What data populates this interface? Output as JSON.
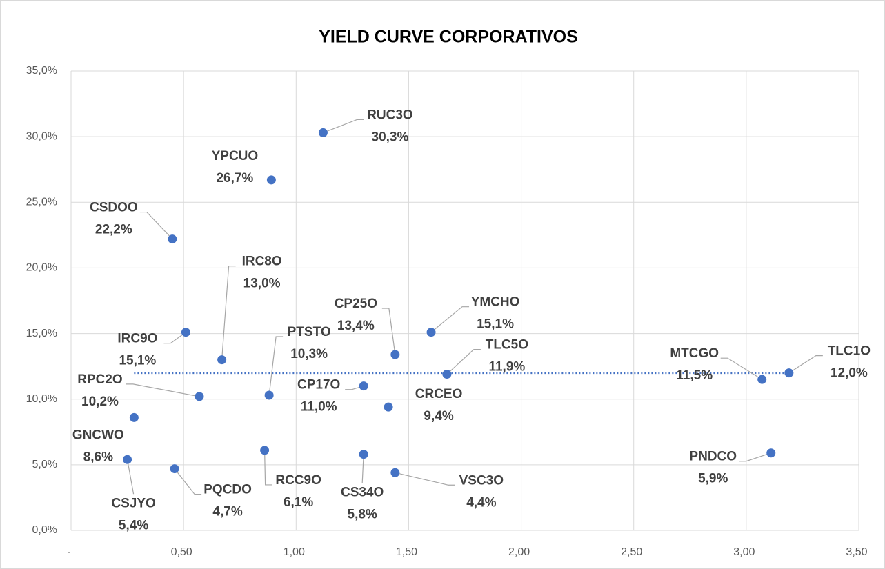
{
  "chart_data": {
    "type": "scatter",
    "title": "YIELD CURVE CORPORATIVOS",
    "xlim": [
      0,
      3.5
    ],
    "xticks": [
      {
        "value": 0,
        "label": "-"
      },
      {
        "value": 0.5,
        "label": "0,50"
      },
      {
        "value": 1,
        "label": "1,00"
      },
      {
        "value": 1.5,
        "label": "1,50"
      },
      {
        "value": 2,
        "label": "2,00"
      },
      {
        "value": 2.5,
        "label": "2,50"
      },
      {
        "value": 3,
        "label": "3,00"
      },
      {
        "value": 3.5,
        "label": "3,50"
      }
    ],
    "ylim": [
      0,
      35
    ],
    "yticks": [
      {
        "value": 0,
        "label": "0,0%"
      },
      {
        "value": 5,
        "label": "5,0%"
      },
      {
        "value": 10,
        "label": "10,0%"
      },
      {
        "value": 15,
        "label": "15,0%"
      },
      {
        "value": 20,
        "label": "20,0%"
      },
      {
        "value": 25,
        "label": "25,0%"
      },
      {
        "value": 30,
        "label": "30,0%"
      },
      {
        "value": 35,
        "label": "35,0%"
      }
    ],
    "grid": true,
    "series": [
      {
        "color": "#4472c4",
        "x": [
          1.12,
          0.89,
          0.45,
          0.67,
          0.51,
          0.88,
          1.44,
          1.6,
          1.67,
          1.3,
          1.41,
          0.57,
          0.28,
          0.25,
          0.46,
          0.86,
          1.3,
          1.44,
          3.07,
          3.19,
          3.11
        ],
        "values": [
          30.3,
          26.7,
          22.2,
          13.0,
          15.1,
          10.3,
          13.4,
          15.1,
          11.9,
          11.0,
          9.4,
          10.2,
          8.6,
          5.4,
          4.7,
          6.1,
          5.8,
          4.4,
          11.5,
          12.0,
          5.9
        ],
        "point_labels": [
          "RUC3O",
          "YPCUO",
          "CSDOO",
          "IRC8O",
          "IRC9O",
          "PTSTO",
          "CP25O",
          "YMCHO",
          "TLC5O",
          "CP17O",
          "CRCEO",
          "RPC2O",
          "GNCWO",
          "CSJYO",
          "PQCDO",
          "RCC9O",
          "CS34O",
          "VSC3O",
          "MTCGO",
          "TLC1O",
          "PNDCO"
        ],
        "value_labels": [
          "30,3%",
          "26,7%",
          "22,2%",
          "13,0%",
          "15,1%",
          "10,3%",
          "13,4%",
          "15,1%",
          "11,9%",
          "11,0%",
          "9,4%",
          "10,2%",
          "8,6%",
          "5,4%",
          "4,7%",
          "6,1%",
          "5,8%",
          "4,4%",
          "11,5%",
          "12,0%",
          "5,9%"
        ]
      }
    ],
    "reference_line": {
      "color": "#4472c4",
      "y": 12.0,
      "x": [
        0.28,
        3.19
      ]
    }
  }
}
